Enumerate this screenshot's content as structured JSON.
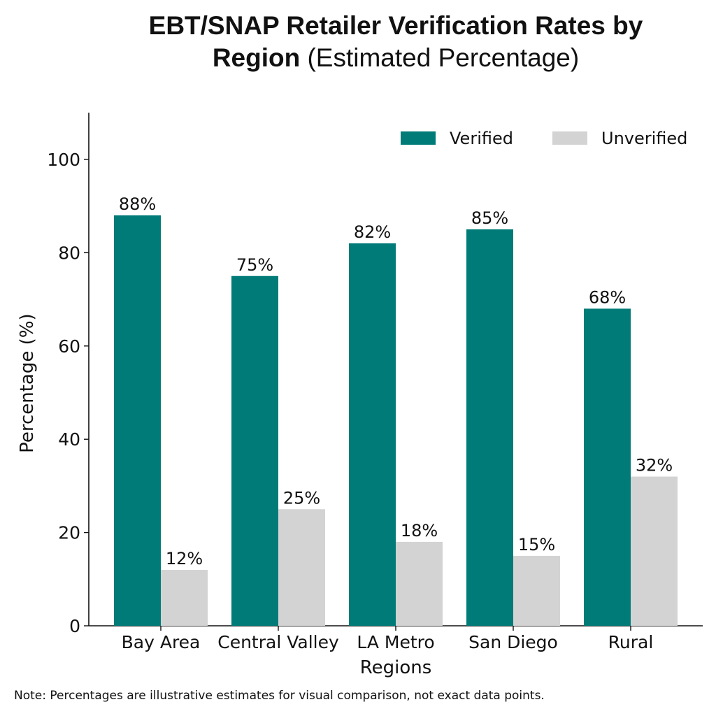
{
  "chart_data": {
    "type": "bar",
    "title_bold_line1": "EBT/SNAP Retailer Verification Rates by",
    "title_bold_line2": "Region",
    "title_normal": "(Estimated Percentage)",
    "xlabel": "Regions",
    "ylabel": "Percentage (%)",
    "ylim": [
      0,
      110
    ],
    "yticks": [
      0,
      20,
      40,
      60,
      80,
      100
    ],
    "categories": [
      "Bay Area",
      "Central Valley",
      "LA Metro",
      "San Diego",
      "Rural"
    ],
    "series": [
      {
        "name": "Verified",
        "color": "#007b78",
        "values": [
          88,
          75,
          82,
          85,
          68
        ],
        "labels": [
          "88%",
          "75%",
          "82%",
          "85%",
          "68%"
        ]
      },
      {
        "name": "Unverified",
        "color": "#d3d3d3",
        "values": [
          12,
          25,
          18,
          15,
          32
        ],
        "labels": [
          "12%",
          "25%",
          "18%",
          "15%",
          "32%"
        ]
      }
    ],
    "legend_position": "top-right",
    "grid": false
  },
  "note": "Note: Percentages are illustrative estimates for visual comparison, not exact data points."
}
